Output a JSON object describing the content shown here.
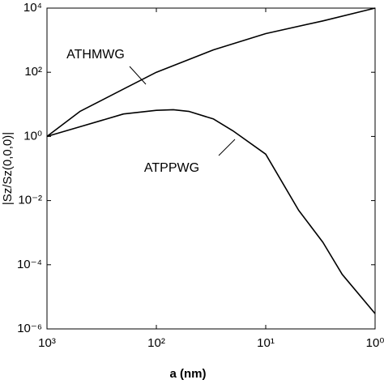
{
  "chart_data": {
    "type": "line",
    "x_label": "a (nm)",
    "y_label": "|Sz/Sz(0,0,0)|",
    "x_scale": "log",
    "y_scale": "log",
    "xlim": [
      1000,
      1
    ],
    "ylim": [
      1e-06,
      10000
    ],
    "xticks": [
      {
        "value": 1000,
        "label": "10³"
      },
      {
        "value": 100,
        "label": "10²"
      },
      {
        "value": 10,
        "label": "10¹"
      },
      {
        "value": 1,
        "label": "10⁰"
      }
    ],
    "yticks": [
      {
        "value": 1e-06,
        "label": "10⁻⁶"
      },
      {
        "value": 0.0001,
        "label": "10⁻⁴"
      },
      {
        "value": 0.01,
        "label": "10⁻²"
      },
      {
        "value": 1,
        "label": "10⁰"
      },
      {
        "value": 100,
        "label": "10²"
      },
      {
        "value": 10000,
        "label": "10⁴"
      }
    ],
    "series": [
      {
        "name": "ATHMWG",
        "color": "#000000",
        "x": [
          1000,
          500,
          200,
          100,
          30,
          10,
          3,
          1
        ],
        "values": [
          1,
          6,
          30,
          100,
          500,
          1600,
          4000,
          10000
        ]
      },
      {
        "name": "ATPPWG",
        "color": "#000000",
        "x": [
          1000,
          500,
          200,
          100,
          70,
          50,
          30,
          20,
          10,
          5,
          3,
          2,
          1
        ],
        "values": [
          1,
          2,
          5,
          6.5,
          6.8,
          6,
          3.5,
          1.5,
          0.28,
          0.005,
          0.0005,
          5e-05,
          3e-06
        ]
      }
    ]
  }
}
